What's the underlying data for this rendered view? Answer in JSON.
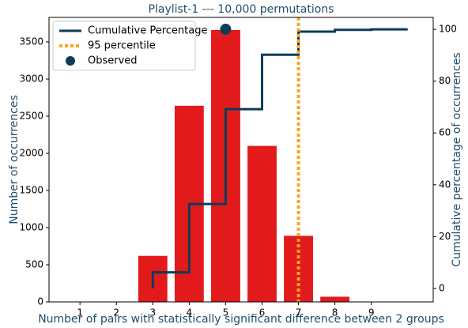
{
  "chart_data": {
    "type": "bar",
    "title": "Playlist-1  ---  10,000 permutations",
    "x_label": "Number of pairs with statistically significant difference between 2 groups",
    "y_label": "Number of occurrences",
    "y2_label": "Cumulative percentage of occurrences",
    "x": [
      3,
      4,
      5,
      6,
      7,
      8
    ],
    "values": [
      620,
      2640,
      3660,
      2100,
      890,
      70
    ],
    "color": "#e31a1c",
    "series": [
      {
        "name": "Cumulative Percentage",
        "color": "#0b3d58",
        "axis": "y2",
        "step": "pre",
        "x": [
          3,
          4,
          5,
          6,
          7,
          8,
          9,
          10
        ],
        "values": [
          0,
          6.2,
          32.6,
          69.2,
          90.2,
          99.1,
          99.8,
          100
        ]
      },
      {
        "name": "95 percentile",
        "color": "#f5a623",
        "type": "vline",
        "x": [
          7
        ]
      },
      {
        "name": "Observed",
        "color": "#0b3d58",
        "type": "scatter",
        "x": [
          5
        ],
        "values": [
          3670
        ]
      }
    ],
    "xlim": [
      0.15,
      10.7
    ],
    "xticks": [
      1,
      2,
      3,
      4,
      5,
      6,
      7,
      8,
      9
    ],
    "ylim": [
      0,
      3830
    ],
    "yticks": [
      0,
      500,
      1000,
      1500,
      2000,
      2500,
      3000,
      3500
    ],
    "y2lim": [
      -5.2,
      104.6
    ],
    "y2ticks": [
      0,
      20,
      40,
      60,
      80,
      100
    ],
    "legend": "upper-left"
  }
}
